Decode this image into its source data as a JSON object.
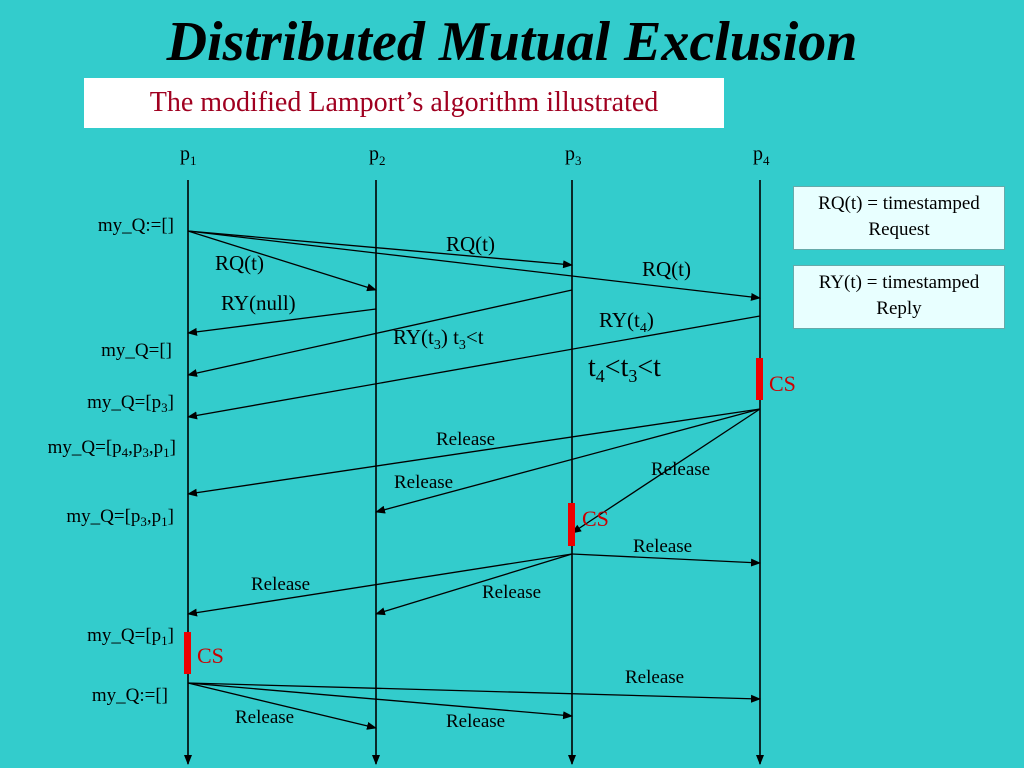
{
  "title": "Distributed Mutual Exclusion",
  "subtitle": "The modified Lamport’s algorithm illustrated",
  "processes": [
    {
      "base": "p",
      "sub": "1"
    },
    {
      "base": "p",
      "sub": "2"
    },
    {
      "base": "p",
      "sub": "3"
    },
    {
      "base": "p",
      "sub": "4"
    }
  ],
  "legend": {
    "rq": {
      "line1": "RQ(t) = timestamped",
      "line2": "Request"
    },
    "ry": {
      "line1": "RY(t) = timestamped",
      "line2": "Reply"
    }
  },
  "queue_states": {
    "q1": "my_Q:=[]",
    "q2": "my_Q=[]",
    "q3": {
      "pre": "my_Q=[p",
      "s1": "3",
      "post": "]"
    },
    "q4": {
      "pre": "my_Q=[p",
      "s1": "4",
      "m1": ",p",
      "s2": "3",
      "m2": ",p",
      "s3": "1",
      "post": "]"
    },
    "q5": {
      "pre": "my_Q=[p",
      "s1": "3",
      "m1": ",p",
      "s2": "1",
      "post": "]"
    },
    "q6": {
      "pre": "my_Q=[p",
      "s1": "1",
      "post": "]"
    },
    "q7": "my_Q:=[]"
  },
  "message_labels": {
    "rq_p3": "RQ(t)",
    "rq_p2": "RQ(t)",
    "rq_p4": "RQ(t)",
    "ry_null": "RY(null)",
    "ry_t3": {
      "pre": "RY(t",
      "s": "3",
      "post": ") t",
      "s2": "3",
      "post2": "<t"
    },
    "ry_t4": {
      "pre": "RY(t",
      "s": "4",
      "post": ")"
    },
    "release": "Release"
  },
  "condition": {
    "a": "t",
    "s1": "4",
    "b": "<t",
    "s2": "3",
    "c": "<t"
  },
  "cs_label": "CS",
  "colors": {
    "background": "#33CCCC",
    "cs_bar": "#EE0000",
    "cs_text": "#CC0000",
    "subtitle_text": "#A00020"
  }
}
